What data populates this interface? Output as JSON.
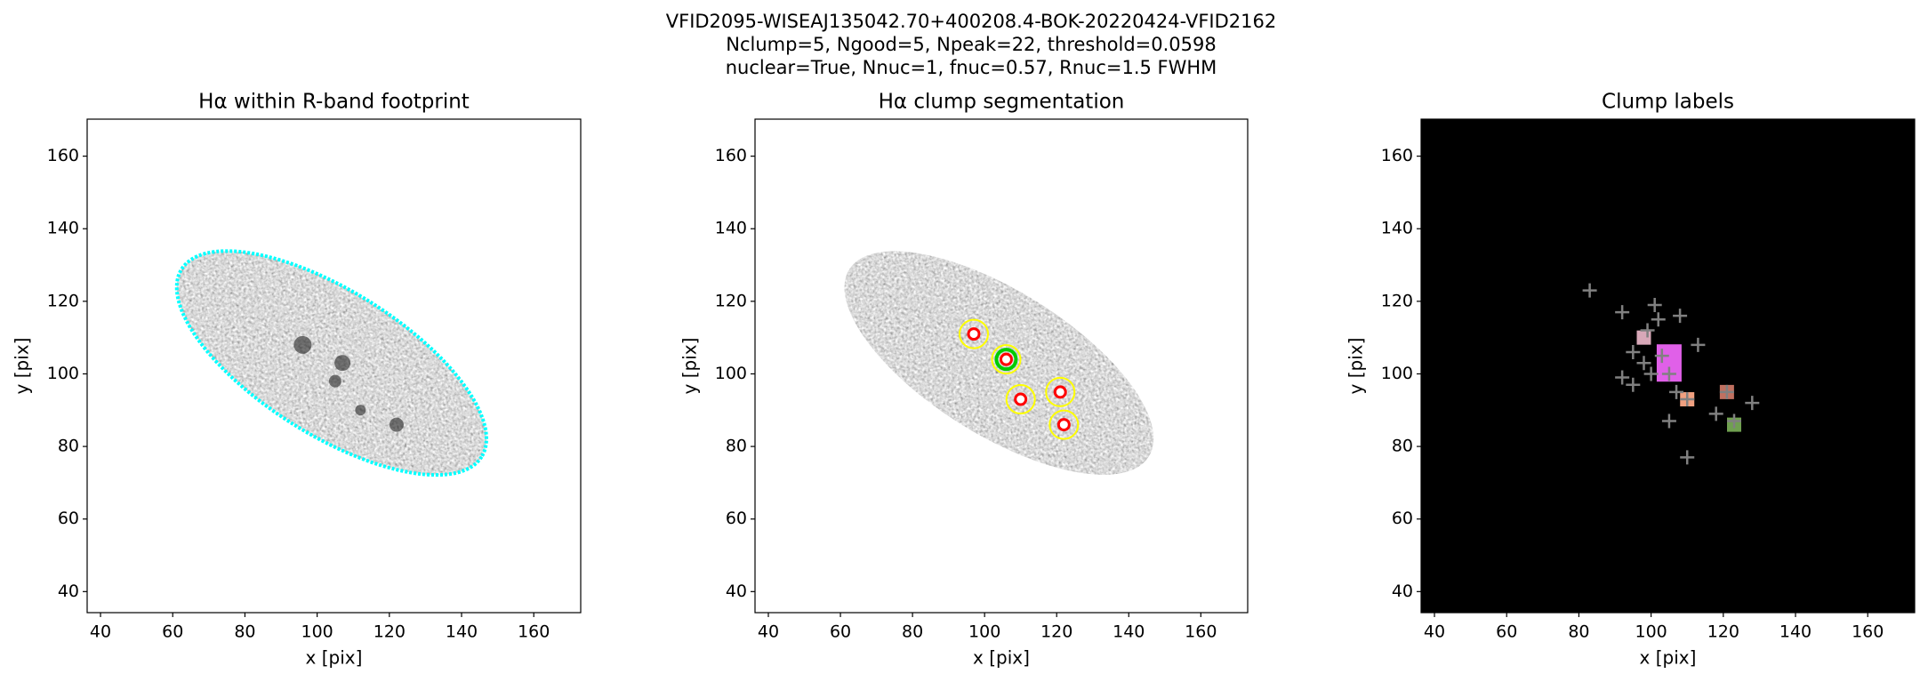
{
  "suptitle": [
    "VFID2095-WISEAJ135042.70+400208.4-BOK-20220424-VFID2162",
    "Nclump=5, Ngood=5, Npeak=22, threshold=0.0598",
    "nuclear=True, Nnuc=1, fnuc=0.57, Rnuc=1.5 FWHM"
  ],
  "chart_data": [
    {
      "type": "image",
      "title": "Hα within R-band footprint",
      "xlabel": "x [pix]",
      "ylabel": "y [pix]",
      "xlim": [
        36.3,
        173
      ],
      "ylim": [
        34.2,
        170.2
      ],
      "xticks": [
        40,
        60,
        80,
        100,
        120,
        140,
        160
      ],
      "yticks": [
        40,
        60,
        80,
        100,
        120,
        140,
        160
      ],
      "background": "#ffffff",
      "contour_color": "#00ffff"
    },
    {
      "type": "image",
      "title": "Hα clump segmentation",
      "xlabel": "x [pix]",
      "ylabel": "y [pix]",
      "xlim": [
        36.3,
        173
      ],
      "ylim": [
        34.2,
        170.2
      ],
      "xticks": [
        40,
        60,
        80,
        100,
        120,
        140,
        160
      ],
      "yticks": [
        40,
        60,
        80,
        100,
        120,
        140,
        160
      ],
      "background": "#ffffff",
      "contour_color": "#ffff00",
      "clumps": {
        "x": [
          97,
          106,
          110,
          121,
          122
        ],
        "y": [
          111,
          104,
          93,
          95,
          86
        ],
        "color": "#ff0000"
      },
      "nucleus": {
        "x": [
          106
        ],
        "y": [
          104
        ],
        "color": "#00cc00"
      }
    },
    {
      "type": "labels",
      "title": "Clump labels",
      "xlabel": "x [pix]",
      "ylabel": "y [pix]",
      "xlim": [
        36.3,
        173
      ],
      "ylim": [
        34.2,
        170.2
      ],
      "xticks": [
        40,
        60,
        80,
        100,
        120,
        140,
        160
      ],
      "yticks": [
        40,
        60,
        80,
        100,
        120,
        140,
        160
      ],
      "background": "#000000",
      "clump_labels": {
        "x": [
          98,
          105,
          110,
          121,
          123
        ],
        "y": [
          110,
          103,
          93,
          95,
          86
        ],
        "colors": [
          "#d8a8b8",
          "#e060e8",
          "#f0a080",
          "#c07060",
          "#70a050"
        ]
      },
      "peaks": {
        "x": [
          83,
          92,
          101,
          108,
          102,
          95,
          98,
          103,
          92,
          95,
          100,
          105,
          107,
          110,
          118,
          121,
          128,
          123,
          105,
          110,
          99,
          113
        ],
        "y": [
          123,
          117,
          119,
          116,
          115,
          106,
          103,
          105,
          99,
          97,
          100,
          100,
          95,
          93,
          89,
          95,
          92,
          87,
          87,
          77,
          112,
          108
        ],
        "color": "#808080"
      }
    }
  ]
}
